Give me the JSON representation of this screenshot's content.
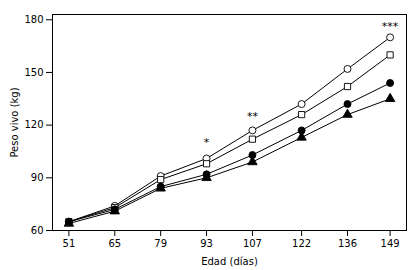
{
  "chart_data": {
    "type": "line",
    "x": [
      51,
      65,
      79,
      93,
      107,
      122,
      136,
      149
    ],
    "series": [
      {
        "color": "#000000",
        "marker": "circle-open",
        "values": [
          65,
          74,
          91,
          101,
          117,
          132,
          152,
          170
        ]
      },
      {
        "color": "#000000",
        "marker": "square-open",
        "values": [
          65,
          73,
          89,
          98,
          112,
          126,
          142,
          160
        ]
      },
      {
        "color": "#000000",
        "marker": "circle",
        "values": [
          65,
          72,
          85,
          92,
          103,
          117,
          132,
          144
        ]
      },
      {
        "color": "#000000",
        "marker": "triangle",
        "values": [
          64,
          71,
          84,
          90,
          99,
          113,
          126,
          135
        ]
      }
    ],
    "annotations": [
      {
        "x": 93,
        "y": 108,
        "text": "*"
      },
      {
        "x": 107,
        "y": 123,
        "text": "**"
      },
      {
        "x": 149,
        "y": 174,
        "text": "***"
      }
    ],
    "xlabel": "Edad (días)",
    "ylabel": "Peso vivo (kg)",
    "xlim": [
      46,
      154
    ],
    "ylim": [
      60,
      183
    ],
    "xticks": [
      51,
      65,
      79,
      93,
      107,
      122,
      136,
      149
    ],
    "yticks": [
      60,
      90,
      120,
      150,
      180
    ],
    "grid": false
  }
}
